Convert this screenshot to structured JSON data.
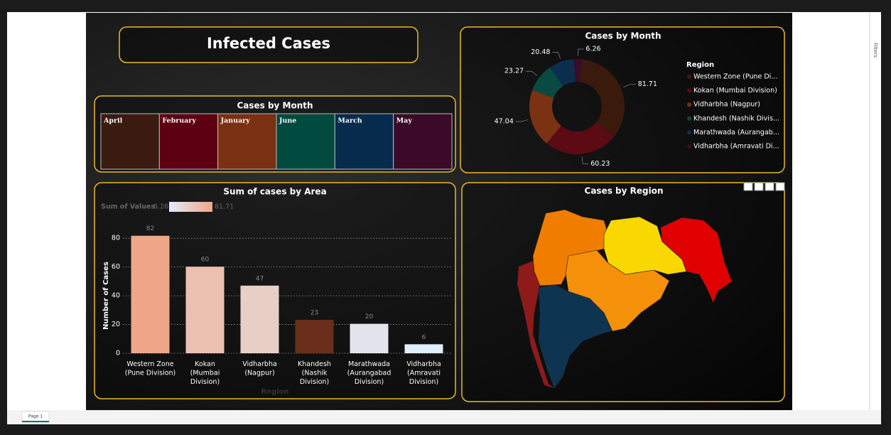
{
  "title": "Infected Cases",
  "chart_data": [
    {
      "type": "treemap",
      "title": "Cases by Month",
      "categories": [
        "April",
        "February",
        "January",
        "June",
        "March",
        "May"
      ],
      "colors": [
        "#3b1a10",
        "#5c0012",
        "#7a3012",
        "#004a3f",
        "#072b4d",
        "#3a0a28"
      ]
    },
    {
      "type": "donut",
      "title": "Cases by Month",
      "legend_title": "Region",
      "legend": "right",
      "categories": [
        "Western Zone (Pune Di...",
        "Kokan (Mumbai Division)",
        "Vidharbha (Nagpur)",
        "Khandesh (Nashik Divis...",
        "Marathwada (Aurangab...",
        "Vidharbha (Amravati Di..."
      ],
      "values": [
        81.71,
        60.23,
        47.04,
        23.27,
        20.48,
        6.26
      ],
      "colors": [
        "#3b1a0e",
        "#5c0a14",
        "#7a3212",
        "#0a4a40",
        "#0b2e4e",
        "#3b0b2a"
      ]
    },
    {
      "type": "bar",
      "title": "Sum of cases by Area",
      "xlabel": "Region",
      "ylabel": "Number of Cases",
      "categories": [
        "Western Zone (Pune Division)",
        "Kokan (Mumbai Division)",
        "Vidharbha (Nagpur)",
        "Khandesh (Nashik Division)",
        "Marathwada (Aurangabad Division)",
        "Vidharbha (Amravati Division)"
      ],
      "values": [
        81.71,
        60.23,
        47.04,
        23.27,
        20.48,
        6.26
      ],
      "value_labels": [
        "82",
        "60",
        "47",
        "23",
        "20",
        "6"
      ],
      "colors": [
        "#f0a688",
        "#ecc0b0",
        "#e8cfc6",
        "#6b2e1a",
        "#e4e4ec",
        "#dfeefc"
      ],
      "ylim": [
        0,
        88
      ],
      "yticks": [
        0,
        20,
        40,
        60,
        80
      ],
      "grid": true,
      "color_scale": {
        "title": "Sum of Values",
        "min": 6.26,
        "max": 81.71,
        "colors": [
          "#dfeefc",
          "#f0a688"
        ]
      }
    },
    {
      "type": "map",
      "title": "Cases by Region"
    }
  ],
  "filters_pane": "Filters",
  "page_tabs": [
    "Page 1"
  ]
}
